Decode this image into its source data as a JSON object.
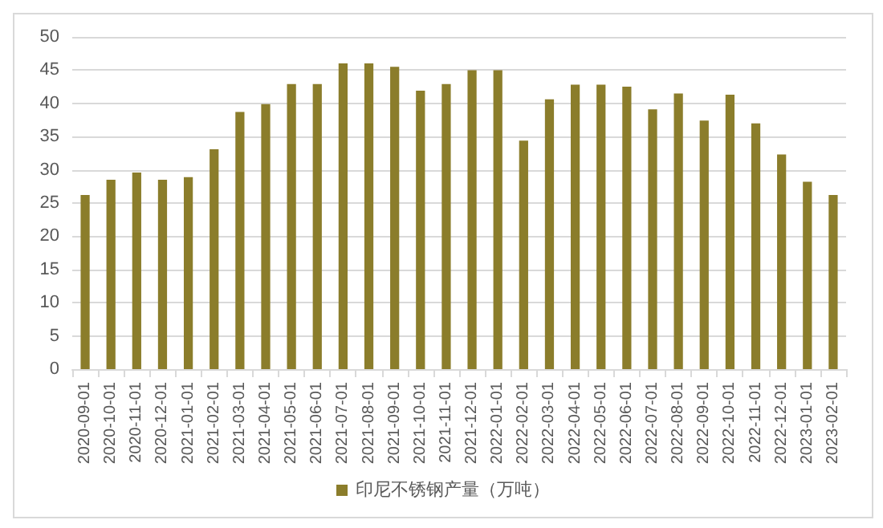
{
  "chart_data": {
    "type": "bar",
    "categories": [
      "2020-09-01",
      "2020-10-01",
      "2020-11-01",
      "2020-12-01",
      "2021-01-01",
      "2021-02-01",
      "2021-03-01",
      "2021-04-01",
      "2021-05-01",
      "2021-06-01",
      "2021-07-01",
      "2021-08-01",
      "2021-09-01",
      "2021-10-01",
      "2021-11-01",
      "2021-12-01",
      "2022-01-01",
      "2022-02-01",
      "2022-03-01",
      "2022-04-01",
      "2022-05-01",
      "2022-06-01",
      "2022-07-01",
      "2022-08-01",
      "2022-09-01",
      "2022-10-01",
      "2022-11-01",
      "2022-12-01",
      "2023-01-01",
      "2023-02-01"
    ],
    "series": [
      {
        "name": "印尼不锈钢产量（万吨）",
        "color": "#8b7d2b",
        "values": [
          26.2,
          28.5,
          29.6,
          28.5,
          28.9,
          33.1,
          38.7,
          39.9,
          42.9,
          42.9,
          46,
          46,
          45.5,
          41.9,
          42.9,
          45,
          45,
          34.4,
          40.6,
          42.8,
          42.8,
          42.5,
          39.1,
          41.5,
          37.4,
          41.3,
          37,
          32.3,
          28.2,
          26.2
        ]
      }
    ],
    "ylim": [
      0,
      50
    ],
    "yticks": [
      0,
      5,
      10,
      15,
      20,
      25,
      30,
      35,
      40,
      45,
      50
    ],
    "grid": "y",
    "legend": "bottom"
  }
}
